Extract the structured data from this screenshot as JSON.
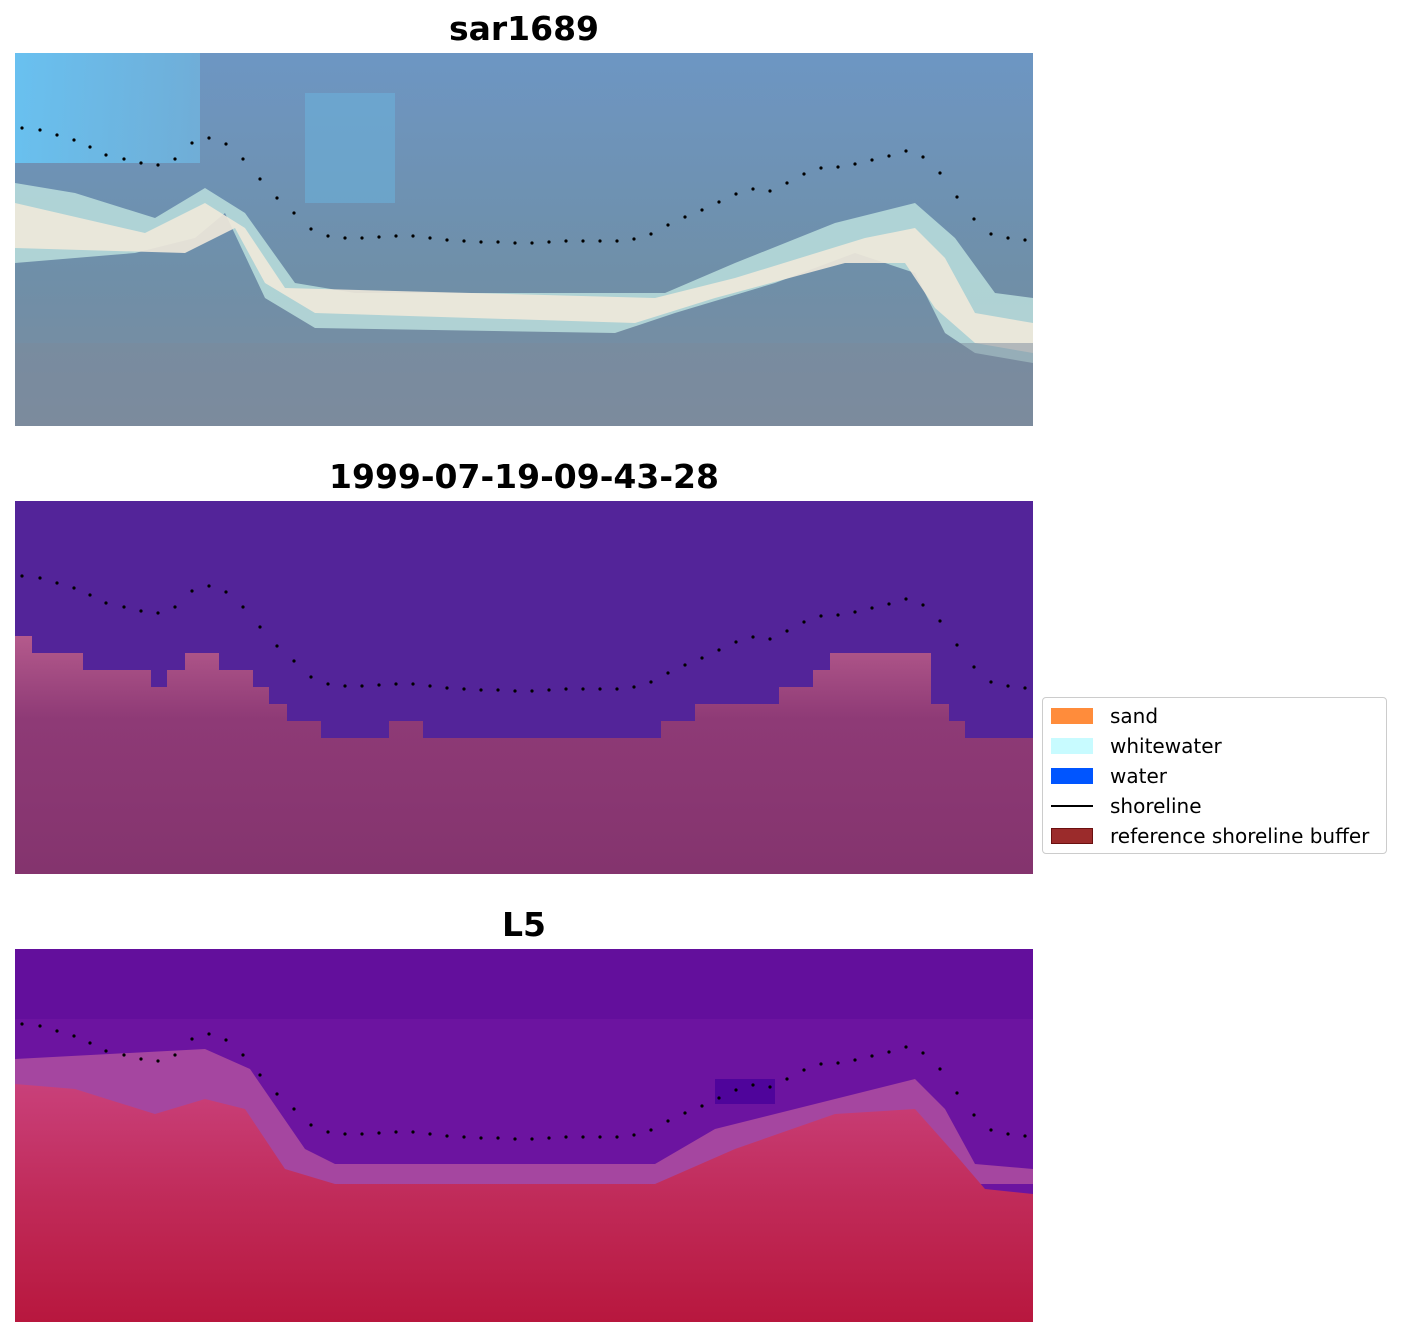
{
  "panels": [
    {
      "id": "rgb",
      "title": "sar1689"
    },
    {
      "id": "classified",
      "title": "1999-07-19-09-43-28"
    },
    {
      "id": "index",
      "title": "L5"
    }
  ],
  "legend": {
    "items": [
      {
        "label": "sand",
        "color": "#ff8c3b",
        "kind": "patch"
      },
      {
        "label": "whitewater",
        "color": "#c8fbff",
        "kind": "patch"
      },
      {
        "label": "water",
        "color": "#0055ff",
        "kind": "patch"
      },
      {
        "label": "shoreline",
        "color": "#000000",
        "kind": "line"
      },
      {
        "label": "reference shoreline buffer",
        "color": "#9b2b2b",
        "kind": "patch"
      }
    ]
  }
}
